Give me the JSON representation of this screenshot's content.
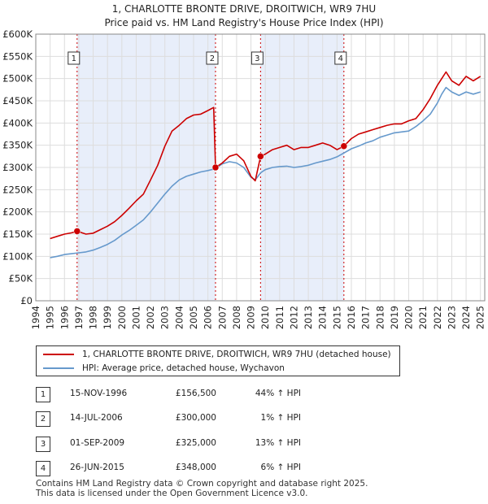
{
  "title_line1": "1, CHARLOTTE BRONTE DRIVE, DROITWICH, WR9 7HU",
  "title_line2": "Price paid vs. HM Land Registry's House Price Index (HPI)",
  "colors": {
    "property": "#cc0000",
    "hpi": "#6699cc",
    "band": "#e8eefa",
    "vline": "#cc0000"
  },
  "chart_data": {
    "type": "line",
    "title": "1, CHARLOTTE BRONTE DRIVE, DROITWICH, WR9 7HU",
    "subtitle": "Price paid vs. HM Land Registry's House Price Index (HPI)",
    "xlim": [
      1994,
      2025.3
    ],
    "ylim": [
      0,
      600000
    ],
    "x_ticks": [
      1994,
      1995,
      1996,
      1997,
      1998,
      1999,
      2000,
      2001,
      2002,
      2003,
      2004,
      2005,
      2006,
      2007,
      2008,
      2009,
      2010,
      2011,
      2012,
      2013,
      2014,
      2015,
      2016,
      2017,
      2018,
      2019,
      2020,
      2021,
      2022,
      2023,
      2024,
      2025
    ],
    "y_ticks": [
      0,
      50000,
      100000,
      150000,
      200000,
      250000,
      300000,
      350000,
      400000,
      450000,
      500000,
      550000,
      600000
    ],
    "y_tick_labels": [
      "£0",
      "£50K",
      "£100K",
      "£150K",
      "£200K",
      "£250K",
      "£300K",
      "£350K",
      "£400K",
      "£450K",
      "£500K",
      "£550K",
      "£600K"
    ],
    "grid": true,
    "series": [
      {
        "name": "1, CHARLOTTE BRONTE DRIVE, DROITWICH, WR9 7HU (detached house)",
        "color": "#cc0000",
        "x": [
          1995.0,
          1995.5,
          1996.0,
          1996.5,
          1996.88,
          1997.5,
          1998.0,
          1998.5,
          1999.0,
          1999.5,
          2000.0,
          2000.5,
          2001.0,
          2001.5,
          2002.0,
          2002.5,
          2003.0,
          2003.5,
          2004.0,
          2004.5,
          2005.0,
          2005.5,
          2006.0,
          2006.4,
          2006.53,
          2007.0,
          2007.5,
          2008.0,
          2008.5,
          2009.0,
          2009.3,
          2009.67,
          2010.0,
          2010.5,
          2011.0,
          2011.5,
          2012.0,
          2012.5,
          2013.0,
          2013.5,
          2014.0,
          2014.5,
          2015.0,
          2015.48,
          2016.0,
          2016.5,
          2017.0,
          2017.5,
          2018.0,
          2018.5,
          2019.0,
          2019.5,
          2020.0,
          2020.5,
          2021.0,
          2021.5,
          2022.0,
          2022.3,
          2022.6,
          2023.0,
          2023.5,
          2024.0,
          2024.5,
          2025.0
        ],
        "values": [
          140000,
          145000,
          150000,
          153000,
          156500,
          150000,
          152000,
          160000,
          168000,
          178000,
          192000,
          208000,
          225000,
          240000,
          272000,
          305000,
          348000,
          382000,
          395000,
          410000,
          418000,
          420000,
          428000,
          435000,
          300000,
          310000,
          325000,
          330000,
          315000,
          280000,
          270000,
          325000,
          330000,
          340000,
          345000,
          350000,
          340000,
          345000,
          345000,
          350000,
          355000,
          350000,
          340000,
          348000,
          365000,
          375000,
          380000,
          385000,
          390000,
          395000,
          398000,
          398000,
          405000,
          410000,
          430000,
          455000,
          485000,
          500000,
          515000,
          495000,
          485000,
          505000,
          495000,
          505000
        ]
      },
      {
        "name": "HPI: Average price, detached house, Wychavon",
        "color": "#6699cc",
        "x": [
          1995.0,
          1995.5,
          1996.0,
          1996.5,
          1997.0,
          1997.5,
          1998.0,
          1998.5,
          1999.0,
          1999.5,
          2000.0,
          2000.5,
          2001.0,
          2001.5,
          2002.0,
          2002.5,
          2003.0,
          2003.5,
          2004.0,
          2004.5,
          2005.0,
          2005.5,
          2006.0,
          2006.5,
          2007.0,
          2007.5,
          2008.0,
          2008.5,
          2009.0,
          2009.3,
          2009.67,
          2010.0,
          2010.5,
          2011.0,
          2011.5,
          2012.0,
          2012.5,
          2013.0,
          2013.5,
          2014.0,
          2014.5,
          2015.0,
          2015.5,
          2016.0,
          2016.5,
          2017.0,
          2017.5,
          2018.0,
          2018.5,
          2019.0,
          2019.5,
          2020.0,
          2020.5,
          2021.0,
          2021.5,
          2022.0,
          2022.3,
          2022.6,
          2023.0,
          2023.5,
          2024.0,
          2024.5,
          2025.0
        ],
        "values": [
          97000,
          100000,
          104000,
          106000,
          108000,
          110000,
          114000,
          120000,
          127000,
          136000,
          148000,
          158000,
          170000,
          182000,
          200000,
          220000,
          240000,
          258000,
          272000,
          280000,
          285000,
          290000,
          293000,
          297000,
          308000,
          313000,
          310000,
          300000,
          278000,
          272000,
          288000,
          295000,
          300000,
          302000,
          303000,
          300000,
          302000,
          305000,
          310000,
          314000,
          318000,
          324000,
          333000,
          342000,
          348000,
          355000,
          360000,
          368000,
          373000,
          378000,
          380000,
          382000,
          392000,
          405000,
          420000,
          445000,
          465000,
          480000,
          470000,
          462000,
          470000,
          465000,
          470000
        ]
      }
    ],
    "sales": [
      {
        "label": "1",
        "x": 1996.88,
        "value": 156500
      },
      {
        "label": "2",
        "x": 2006.53,
        "value": 300000
      },
      {
        "label": "3",
        "x": 2009.67,
        "value": 325000
      },
      {
        "label": "4",
        "x": 2015.48,
        "value": 348000
      }
    ],
    "shaded_bands": [
      [
        1996.88,
        2006.53
      ],
      [
        2009.67,
        2015.48
      ]
    ]
  },
  "legend": {
    "property_label": "1, CHARLOTTE BRONTE DRIVE, DROITWICH, WR9 7HU (detached house)",
    "hpi_label": "HPI: Average price, detached house, Wychavon"
  },
  "sales_table": [
    {
      "num": "1",
      "date": "15-NOV-1996",
      "price": "£156,500",
      "hpi": "44% ↑ HPI"
    },
    {
      "num": "2",
      "date": "14-JUL-2006",
      "price": "£300,000",
      "hpi": "1% ↑ HPI"
    },
    {
      "num": "3",
      "date": "01-SEP-2009",
      "price": "£325,000",
      "hpi": "13% ↑ HPI"
    },
    {
      "num": "4",
      "date": "26-JUN-2015",
      "price": "£348,000",
      "hpi": "6% ↑ HPI"
    }
  ],
  "footer": {
    "line1": "Contains HM Land Registry data © Crown copyright and database right 2025.",
    "line2": "This data is licensed under the Open Government Licence v3.0."
  }
}
